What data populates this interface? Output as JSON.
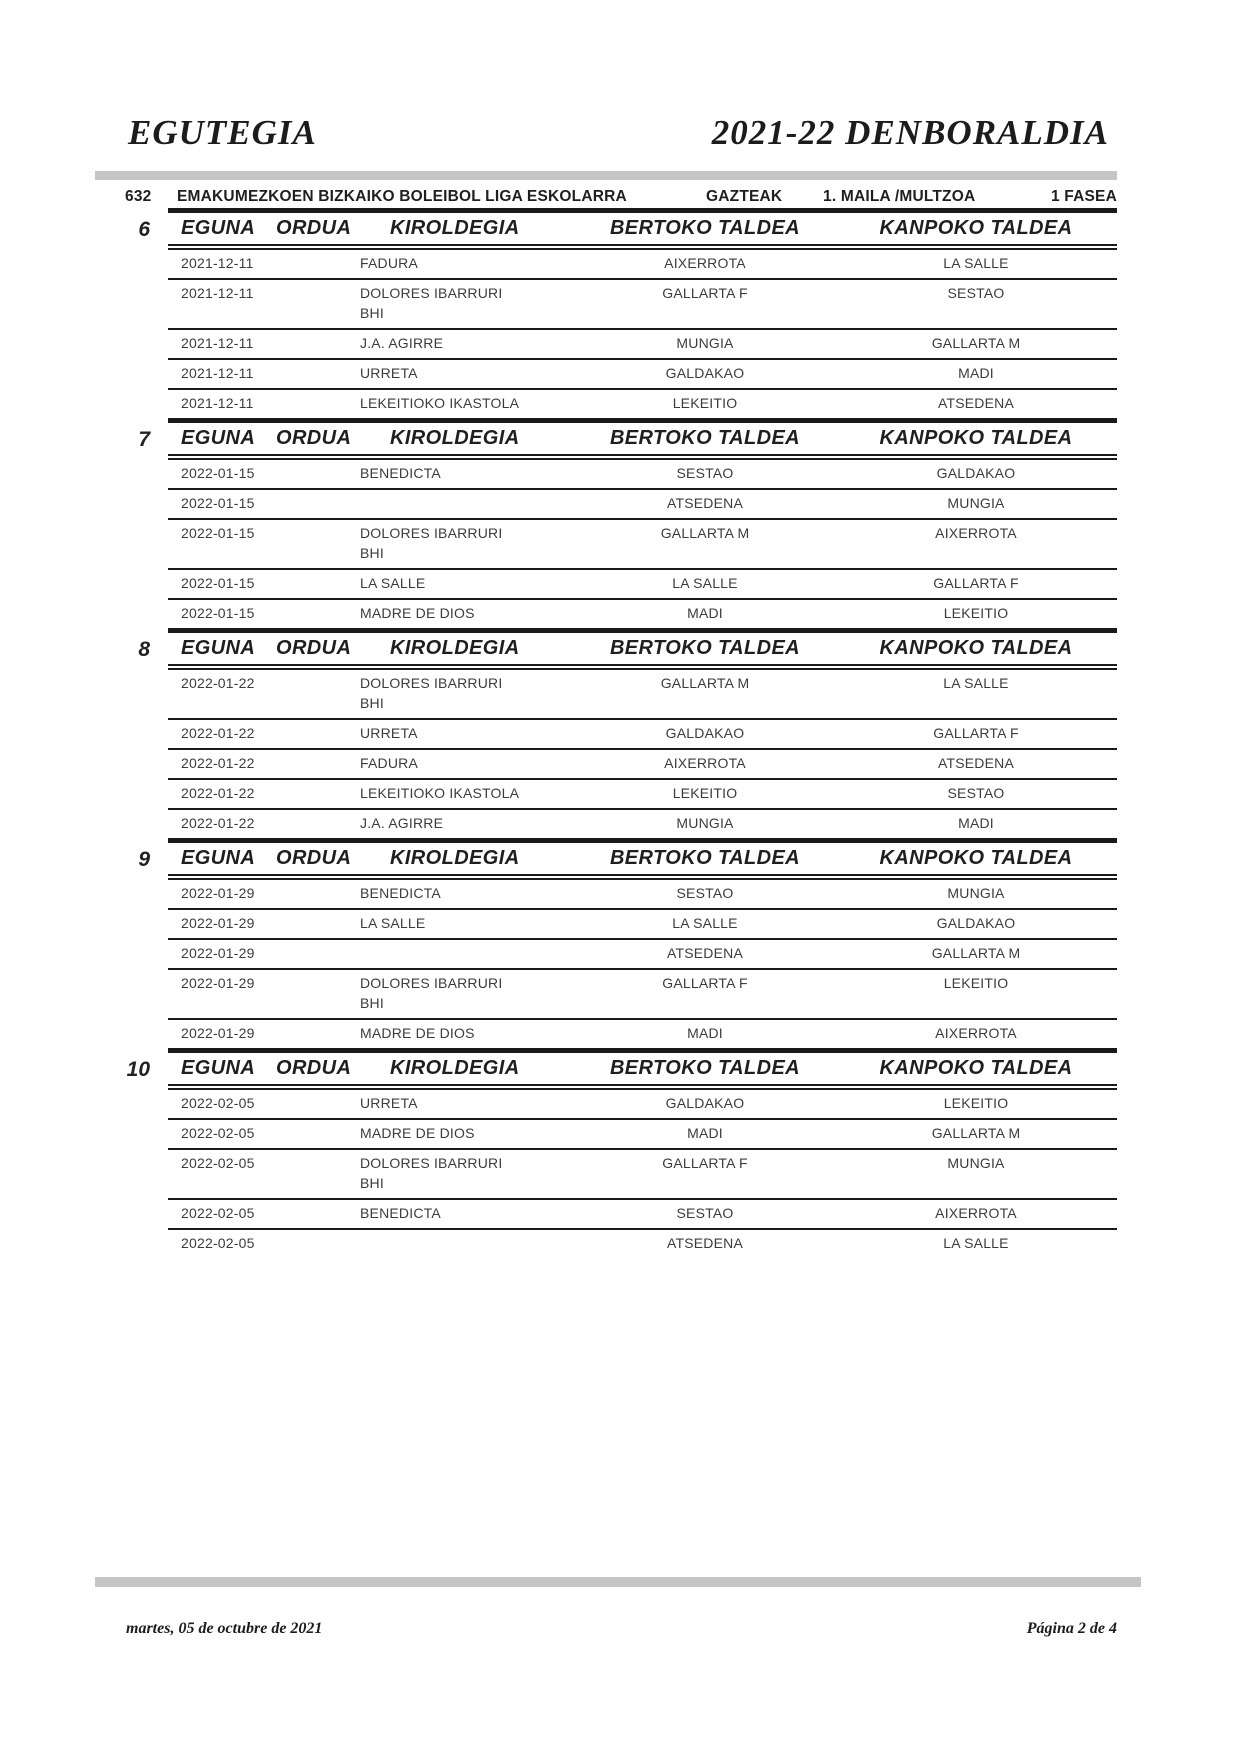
{
  "masthead": {
    "title_left": "EGUTEGIA",
    "title_right": "2021-22  DENBORALDIA"
  },
  "league": {
    "code": "632",
    "name": "EMAKUMEZKOEN BIZKAIKO BOLEIBOL LIGA ESKOLARRA",
    "category": "GAZTEAK",
    "level": "1. MAILA /MULTZOA",
    "phase": "1 FASEA"
  },
  "columns": {
    "eguna": "EGUNA",
    "ordua": "ORDUA",
    "kiroldegia": "KIROLDEGIA",
    "bertoko": "BERTOKO TALDEA",
    "kanpoko": "KANPOKO TALDEA"
  },
  "colors": {
    "rule_gray": "#c5c5c5",
    "line_black": "#1a1a1a",
    "text": "#3c3c3c"
  },
  "jornadas": [
    {
      "number": "6",
      "rows": [
        {
          "date": "2021-12-11",
          "time": "",
          "venue": "FADURA",
          "home": "AIXERROTA",
          "away": "LA SALLE"
        },
        {
          "date": "2021-12-11",
          "time": "",
          "venue": "DOLORES IBARRURI\nBHI",
          "home": "GALLARTA F",
          "away": "SESTAO"
        },
        {
          "date": "2021-12-11",
          "time": "",
          "venue": "J.A. AGIRRE",
          "home": "MUNGIA",
          "away": "GALLARTA M"
        },
        {
          "date": "2021-12-11",
          "time": "",
          "venue": "URRETA",
          "home": "GALDAKAO",
          "away": "MADI"
        },
        {
          "date": "2021-12-11",
          "time": "",
          "venue": "LEKEITIOKO IKASTOLA",
          "home": "LEKEITIO",
          "away": "ATSEDENA"
        }
      ]
    },
    {
      "number": "7",
      "rows": [
        {
          "date": "2022-01-15",
          "time": "",
          "venue": "BENEDICTA",
          "home": "SESTAO",
          "away": "GALDAKAO"
        },
        {
          "date": "2022-01-15",
          "time": "",
          "venue": "",
          "home": "ATSEDENA",
          "away": "MUNGIA"
        },
        {
          "date": "2022-01-15",
          "time": "",
          "venue": "DOLORES IBARRURI\nBHI",
          "home": "GALLARTA M",
          "away": "AIXERROTA"
        },
        {
          "date": "2022-01-15",
          "time": "",
          "venue": "LA SALLE",
          "home": "LA SALLE",
          "away": "GALLARTA F"
        },
        {
          "date": "2022-01-15",
          "time": "",
          "venue": "MADRE DE DIOS",
          "home": "MADI",
          "away": "LEKEITIO"
        }
      ]
    },
    {
      "number": "8",
      "rows": [
        {
          "date": "2022-01-22",
          "time": "",
          "venue": "DOLORES IBARRURI\nBHI",
          "home": "GALLARTA M",
          "away": "LA SALLE"
        },
        {
          "date": "2022-01-22",
          "time": "",
          "venue": "URRETA",
          "home": "GALDAKAO",
          "away": "GALLARTA F"
        },
        {
          "date": "2022-01-22",
          "time": "",
          "venue": "FADURA",
          "home": "AIXERROTA",
          "away": "ATSEDENA"
        },
        {
          "date": "2022-01-22",
          "time": "",
          "venue": "LEKEITIOKO IKASTOLA",
          "home": "LEKEITIO",
          "away": "SESTAO"
        },
        {
          "date": "2022-01-22",
          "time": "",
          "venue": "J.A. AGIRRE",
          "home": "MUNGIA",
          "away": "MADI"
        }
      ]
    },
    {
      "number": "9",
      "rows": [
        {
          "date": "2022-01-29",
          "time": "",
          "venue": "BENEDICTA",
          "home": "SESTAO",
          "away": "MUNGIA"
        },
        {
          "date": "2022-01-29",
          "time": "",
          "venue": "LA SALLE",
          "home": "LA SALLE",
          "away": "GALDAKAO"
        },
        {
          "date": "2022-01-29",
          "time": "",
          "venue": "",
          "home": "ATSEDENA",
          "away": "GALLARTA M"
        },
        {
          "date": "2022-01-29",
          "time": "",
          "venue": "DOLORES IBARRURI\nBHI",
          "home": "GALLARTA F",
          "away": "LEKEITIO"
        },
        {
          "date": "2022-01-29",
          "time": "",
          "venue": "MADRE DE DIOS",
          "home": "MADI",
          "away": "AIXERROTA"
        }
      ]
    },
    {
      "number": "10",
      "rows": [
        {
          "date": "2022-02-05",
          "time": "",
          "venue": "URRETA",
          "home": "GALDAKAO",
          "away": "LEKEITIO"
        },
        {
          "date": "2022-02-05",
          "time": "",
          "venue": "MADRE DE DIOS",
          "home": "MADI",
          "away": "GALLARTA M"
        },
        {
          "date": "2022-02-05",
          "time": "",
          "venue": "DOLORES IBARRURI\nBHI",
          "home": "GALLARTA F",
          "away": "MUNGIA"
        },
        {
          "date": "2022-02-05",
          "time": "",
          "venue": "BENEDICTA",
          "home": "SESTAO",
          "away": "AIXERROTA"
        },
        {
          "date": "2022-02-05",
          "time": "",
          "venue": "",
          "home": "ATSEDENA",
          "away": "LA SALLE"
        }
      ]
    }
  ],
  "footer": {
    "date_printed": "martes, 05 de octubre de 2021",
    "page_indicator": "Página 2 de 4"
  }
}
